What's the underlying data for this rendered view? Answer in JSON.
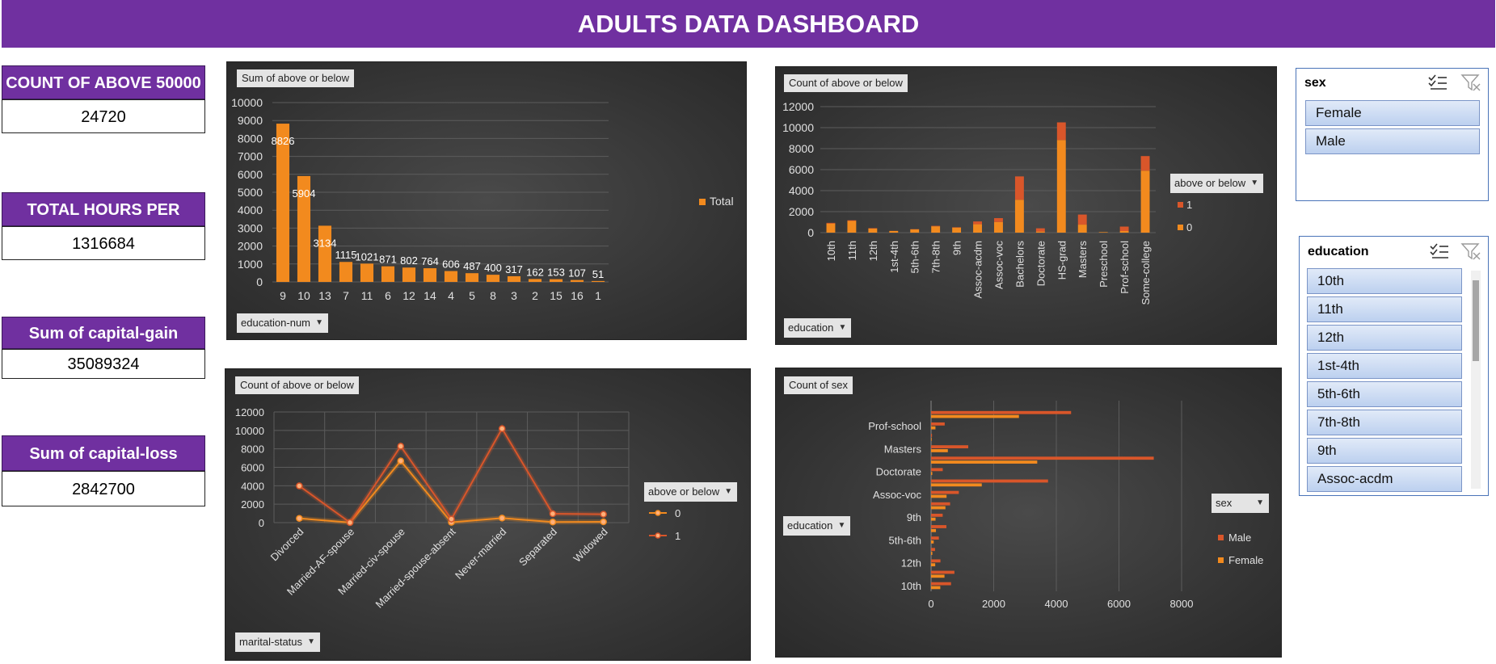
{
  "dashboard": {
    "title": "ADULTS DATA DASHBOARD"
  },
  "kpis": [
    {
      "label": "COUNT OF ABOVE 50000",
      "value": "24720"
    },
    {
      "label": "TOTAL HOURS PER WEEK",
      "value": "1316684"
    },
    {
      "label": "Sum of capital-gain",
      "value": "35089324"
    },
    {
      "label": "Sum of capital-loss",
      "value": "2842700"
    }
  ],
  "colors": {
    "brand": "#7030a0",
    "orange": "#f28a1e",
    "dark_orange": "#d9562a",
    "slicer_blue": "#bcd0ef"
  },
  "charts": {
    "c1": {
      "header": "Sum of above or below",
      "filter": "education-num",
      "legend": "Total"
    },
    "c2": {
      "header": "Count of above or below",
      "filter": "education",
      "legend_title": "above or below",
      "legend": [
        "1",
        "0"
      ]
    },
    "c3": {
      "header": "Count of above or below",
      "filter": "marital-status",
      "legend_title": "above or below",
      "legend": [
        "0",
        "1"
      ]
    },
    "c4": {
      "header": "Count of sex",
      "filter": "education",
      "legend_title": "sex",
      "legend": [
        "Male",
        "Female"
      ]
    }
  },
  "chart_data": [
    {
      "type": "bar",
      "categories": [
        "9",
        "10",
        "13",
        "7",
        "11",
        "6",
        "12",
        "14",
        "4",
        "5",
        "8",
        "3",
        "2",
        "15",
        "16",
        "1"
      ],
      "series": [
        {
          "name": "Total",
          "values": [
            8826,
            5904,
            3134,
            1115,
            1021,
            871,
            802,
            764,
            606,
            487,
            400,
            317,
            162,
            153,
            107,
            51
          ]
        }
      ],
      "data_labels": [
        "8826",
        "5904",
        "3134",
        "1115",
        "1021",
        "871",
        "802",
        "764",
        "606",
        "487",
        "400",
        "317",
        "162",
        "153",
        "107",
        "51"
      ],
      "ylim": [
        0,
        10000
      ],
      "yticks": [
        "0",
        "1000",
        "2000",
        "3000",
        "4000",
        "5000",
        "6000",
        "7000",
        "8000",
        "9000",
        "10000"
      ],
      "legend": "right"
    },
    {
      "type": "bar",
      "stacked": true,
      "categories": [
        "10th",
        "11th",
        "12th",
        "1st-4th",
        "5th-6th",
        "7th-8th",
        "9th",
        "Assoc-acdm",
        "Assoc-voc",
        "Bachelors",
        "Doctorate",
        "HS-grad",
        "Masters",
        "Preschool",
        "Prof-school",
        "Some-college"
      ],
      "series": [
        {
          "name": "0",
          "values": [
            871,
            1115,
            400,
            162,
            317,
            606,
            487,
            802,
            1021,
            3134,
            107,
            8826,
            764,
            51,
            153,
            5904
          ]
        },
        {
          "name": "1",
          "values": [
            62,
            60,
            33,
            6,
            16,
            40,
            27,
            265,
            361,
            2221,
            306,
            1675,
            959,
            0,
            423,
            1387
          ]
        }
      ],
      "ylim": [
        0,
        12000
      ],
      "yticks": [
        "0",
        "2000",
        "4000",
        "6000",
        "8000",
        "10000",
        "12000"
      ],
      "legend": "right"
    },
    {
      "type": "line",
      "categories": [
        "Divorced",
        "Married-AF-spouse",
        "Married-civ-spouse",
        "Married-spouse-absent",
        "Never-married",
        "Separated",
        "Widowed"
      ],
      "series": [
        {
          "name": "0",
          "values": [
            463,
            13,
            6692,
            34,
            491,
            66,
            85
          ]
        },
        {
          "name": "1",
          "values": [
            3980,
            10,
            8284,
            384,
            10192,
            959,
            908
          ]
        }
      ],
      "ylim": [
        0,
        12000
      ],
      "yticks": [
        "0",
        "2000",
        "4000",
        "6000",
        "8000",
        "10000",
        "12000"
      ],
      "grid": true,
      "legend": "right"
    },
    {
      "type": "bar",
      "orientation": "horizontal",
      "categories": [
        "10th",
        "11th",
        "12th",
        "1st-4th",
        "5th-6th",
        "7th-8th",
        "9th",
        "Assoc-acdm",
        "Assoc-voc",
        "Bachelors",
        "Doctorate",
        "HS-grad",
        "Masters",
        "Preschool",
        "Prof-school",
        "Some-college"
      ],
      "category_labels": [
        "10th",
        "12th",
        "5th-6th",
        "9th",
        "Assoc-voc",
        "Doctorate",
        "Masters",
        "Prof-school"
      ],
      "series": [
        {
          "name": "Male",
          "values": [
            638,
            746,
            300,
            127,
            249,
            490,
            371,
            608,
            887,
            3735,
            373,
            7111,
            1187,
            30,
            436,
            4471
          ]
        },
        {
          "name": "Female",
          "values": [
            295,
            429,
            133,
            41,
            84,
            156,
            143,
            459,
            495,
            1620,
            39,
            3390,
            536,
            21,
            140,
            2806
          ]
        }
      ],
      "xlim": [
        0,
        8000
      ],
      "xticks": [
        "0",
        "2000",
        "4000",
        "6000",
        "8000"
      ],
      "legend": "right"
    }
  ],
  "slicers": {
    "sex": {
      "title": "sex",
      "items": [
        "Female",
        "Male"
      ]
    },
    "education": {
      "title": "education",
      "items": [
        "10th",
        "11th",
        "12th",
        "1st-4th",
        "5th-6th",
        "7th-8th",
        "9th",
        "Assoc-acdm"
      ]
    }
  }
}
